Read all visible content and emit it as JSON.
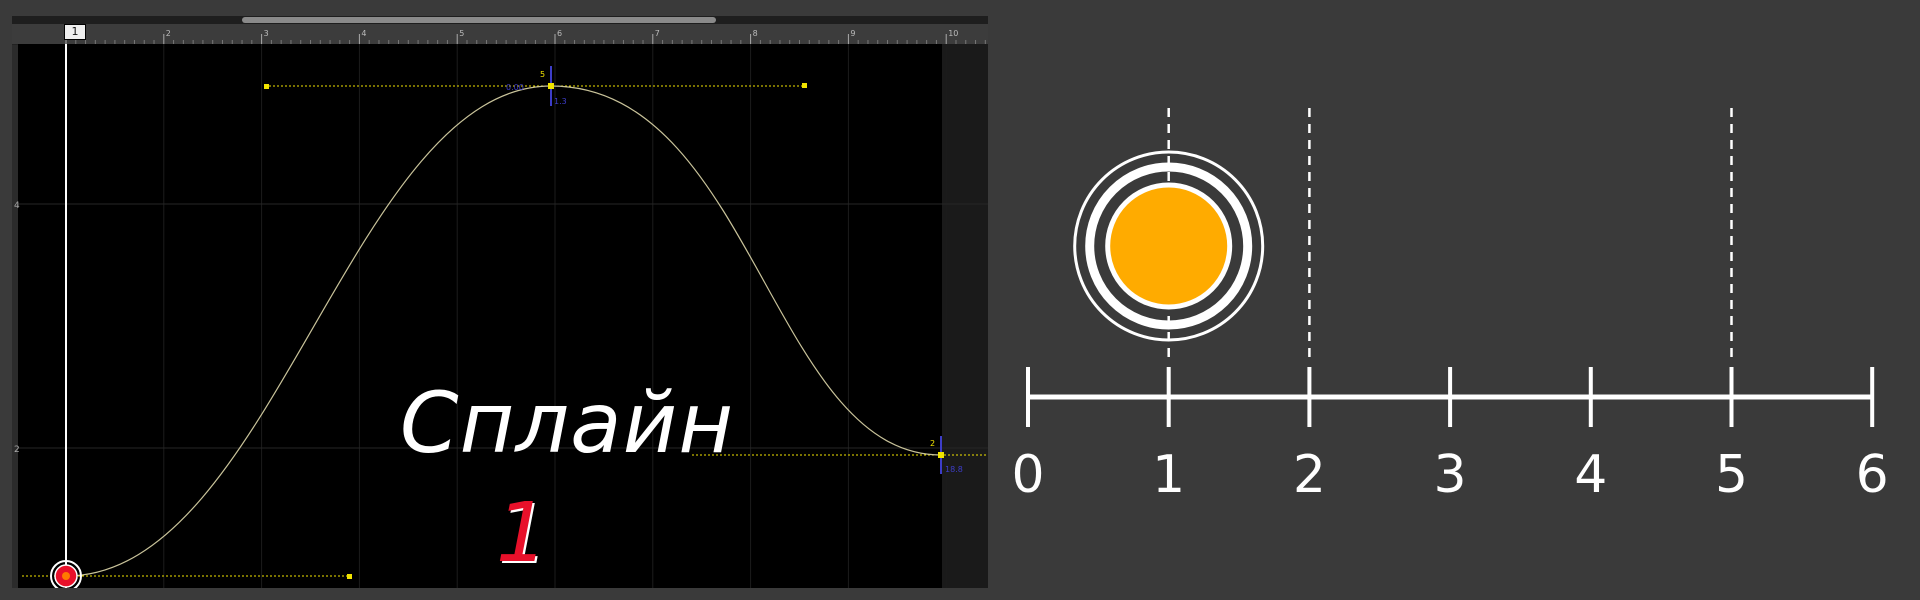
{
  "editor": {
    "playhead_frame": "1",
    "playhead_arrows": "⇄",
    "ruler_labels": [
      "2",
      "3",
      "4",
      "5",
      "6",
      "7",
      "8",
      "9",
      "10"
    ],
    "value_labels": [
      "4",
      "2"
    ],
    "title": "Сплайн",
    "number": "1",
    "key_labels": {
      "peak": "5",
      "end": "2",
      "peak_value": "1.3",
      "end_value": "18.8",
      "peak_left": "0.00"
    },
    "colors": {
      "curve": "#c9c39a",
      "handles": "#f2e400",
      "playhead": "#ffffff",
      "title_number": "#e8102a"
    }
  },
  "number_line": {
    "tick_labels": [
      "0",
      "1",
      "2",
      "3",
      "4",
      "5",
      "6"
    ],
    "dashed_markers": [
      1,
      2,
      5
    ],
    "ball_position": 1,
    "colors": {
      "line": "#ffffff",
      "ball_fill": "#ffab00"
    }
  }
}
